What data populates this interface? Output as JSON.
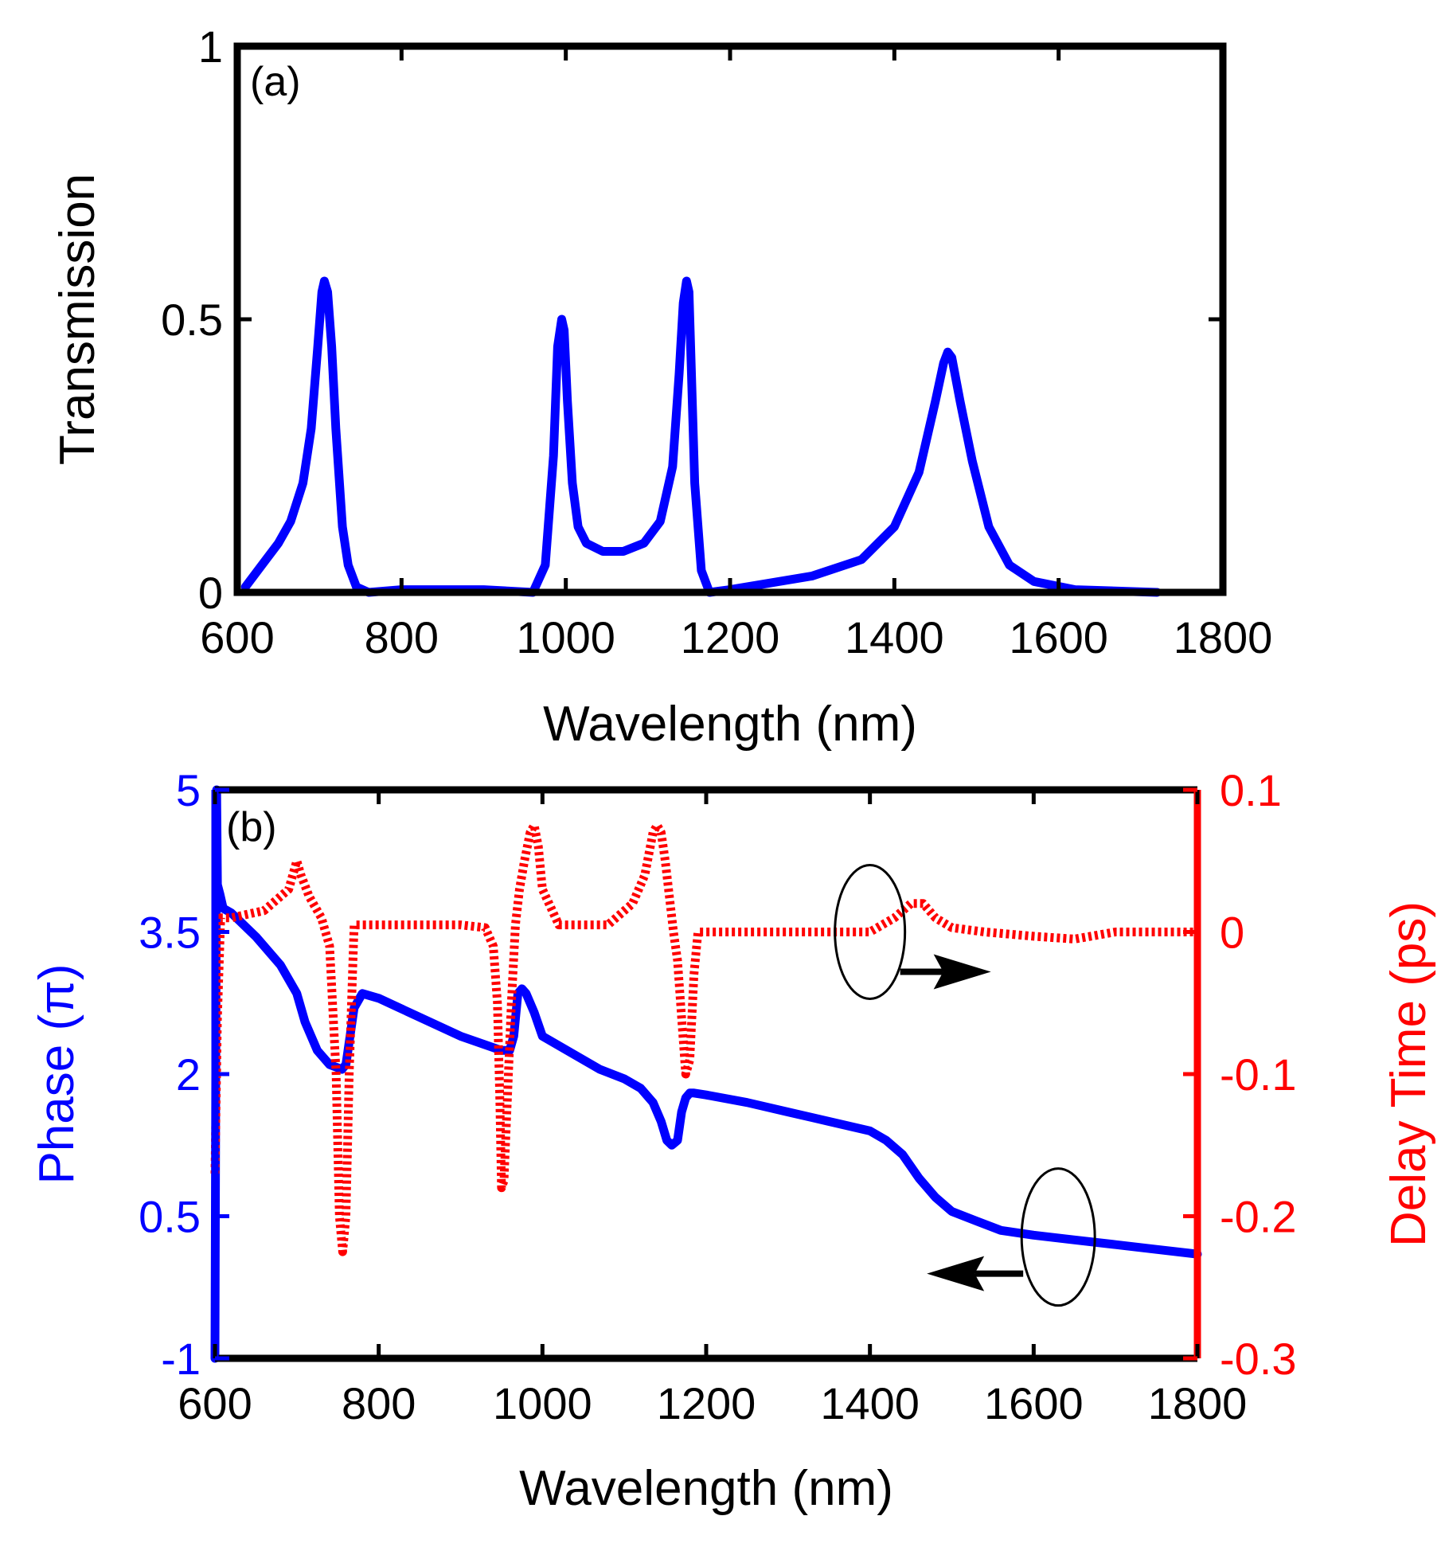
{
  "colors": {
    "blue": "#0000ff",
    "red": "#ff0000",
    "black": "#000000"
  },
  "chart_data": [
    {
      "panel_label": "(a)",
      "type": "line",
      "xlabel": "Wavelength (nm)",
      "ylabel": "Transmission",
      "xlim": [
        600,
        1800
      ],
      "ylim": [
        0,
        1
      ],
      "xticks": [
        "600",
        "800",
        "1000",
        "1200",
        "1400",
        "1600",
        "1800"
      ],
      "yticks": [
        "0",
        "0.5",
        "1"
      ],
      "series": [
        {
          "name": "Transmission",
          "color": "#0000ff",
          "x": [
            610,
            630,
            650,
            665,
            680,
            690,
            698,
            703,
            706,
            710,
            715,
            720,
            728,
            735,
            745,
            760,
            800,
            900,
            960,
            975,
            985,
            990,
            995,
            998,
            1002,
            1008,
            1015,
            1025,
            1045,
            1070,
            1095,
            1115,
            1130,
            1138,
            1143,
            1147,
            1150,
            1153,
            1157,
            1165,
            1175,
            1200,
            1300,
            1360,
            1400,
            1430,
            1450,
            1460,
            1465,
            1470,
            1480,
            1495,
            1515,
            1540,
            1570,
            1620,
            1720
          ],
          "y": [
            0.01,
            0.05,
            0.09,
            0.13,
            0.2,
            0.3,
            0.45,
            0.55,
            0.57,
            0.55,
            0.45,
            0.3,
            0.12,
            0.05,
            0.01,
            0.0,
            0.005,
            0.005,
            0.0,
            0.05,
            0.25,
            0.45,
            0.5,
            0.48,
            0.35,
            0.2,
            0.12,
            0.09,
            0.075,
            0.075,
            0.09,
            0.13,
            0.23,
            0.4,
            0.53,
            0.57,
            0.55,
            0.4,
            0.2,
            0.04,
            0.0,
            0.005,
            0.03,
            0.06,
            0.12,
            0.22,
            0.35,
            0.42,
            0.44,
            0.43,
            0.35,
            0.24,
            0.12,
            0.05,
            0.02,
            0.005,
            0.0
          ]
        }
      ]
    },
    {
      "panel_label": "(b)",
      "type": "line",
      "xlabel": "Wavelength (nm)",
      "ylabel": "Phase (π)",
      "ylabel_right": "Delay Time (ps)",
      "xlim": [
        600,
        1800
      ],
      "ylim": [
        -1,
        5
      ],
      "ylim_right": [
        -0.3,
        0.1
      ],
      "xticks": [
        "600",
        "800",
        "1000",
        "1200",
        "1400",
        "1600",
        "1800"
      ],
      "yticks": [
        "-1",
        "0.5",
        "2",
        "3.5",
        "5"
      ],
      "yticks_right": [
        "-0.3",
        "-0.2",
        "-0.1",
        "0",
        "0.1"
      ],
      "series": [
        {
          "name": "Phase",
          "axis": "left",
          "color": "#0000ff",
          "style": "solid",
          "x": [
            600,
            601,
            602,
            603,
            606,
            610,
            620,
            650,
            680,
            700,
            710,
            725,
            740,
            755,
            760,
            770,
            780,
            800,
            850,
            900,
            950,
            960,
            965,
            970,
            975,
            980,
            990,
            1000,
            1030,
            1070,
            1100,
            1120,
            1135,
            1145,
            1152,
            1158,
            1165,
            1170,
            1175,
            1180,
            1185,
            1200,
            1250,
            1300,
            1350,
            1400,
            1420,
            1440,
            1460,
            1480,
            1500,
            1530,
            1560,
            1600,
            1650,
            1700,
            1750,
            1800
          ],
          "y": [
            -1,
            2,
            5,
            4.0,
            3.9,
            3.75,
            3.7,
            3.45,
            3.15,
            2.85,
            2.55,
            2.25,
            2.1,
            2.05,
            2.1,
            2.7,
            2.85,
            2.8,
            2.6,
            2.4,
            2.25,
            2.25,
            2.4,
            2.85,
            2.9,
            2.85,
            2.65,
            2.4,
            2.25,
            2.05,
            1.95,
            1.85,
            1.7,
            1.5,
            1.3,
            1.25,
            1.3,
            1.6,
            1.75,
            1.8,
            1.8,
            1.78,
            1.7,
            1.6,
            1.5,
            1.4,
            1.3,
            1.15,
            0.9,
            0.7,
            0.55,
            0.45,
            0.35,
            0.3,
            0.25,
            0.2,
            0.15,
            0.1
          ]
        },
        {
          "name": "Delay Time",
          "axis": "right",
          "color": "#ff0000",
          "style": "dotted",
          "x": [
            600,
            603,
            607,
            612,
            620,
            660,
            690,
            700,
            705,
            715,
            730,
            740,
            748,
            752,
            756,
            760,
            764,
            770,
            790,
            850,
            900,
            930,
            940,
            945,
            948,
            950,
            953,
            957,
            962,
            967,
            972,
            978,
            985,
            990,
            995,
            1000,
            1020,
            1050,
            1080,
            1110,
            1125,
            1135,
            1140,
            1145,
            1150,
            1160,
            1165,
            1170,
            1175,
            1180,
            1185,
            1190,
            1200,
            1300,
            1400,
            1430,
            1450,
            1465,
            1480,
            1500,
            1540,
            1600,
            1650,
            1700,
            1750,
            1800
          ],
          "y": [
            -0.17,
            -0.06,
            0.01,
            0.01,
            0.01,
            0.015,
            0.03,
            0.05,
            0.04,
            0.025,
            0.01,
            -0.01,
            -0.1,
            -0.2,
            -0.225,
            -0.2,
            -0.1,
            0.005,
            0.005,
            0.005,
            0.005,
            0.003,
            -0.01,
            -0.05,
            -0.12,
            -0.18,
            -0.175,
            -0.12,
            -0.05,
            0.005,
            0.03,
            0.05,
            0.07,
            0.075,
            0.06,
            0.03,
            0.005,
            0.005,
            0.005,
            0.02,
            0.04,
            0.07,
            0.075,
            0.07,
            0.05,
            0.0,
            -0.02,
            -0.06,
            -0.1,
            -0.09,
            -0.03,
            0.0,
            0.0,
            0.0,
            0.0,
            0.01,
            0.02,
            0.02,
            0.01,
            0.003,
            0.0,
            -0.003,
            -0.005,
            0.0,
            0.0,
            0.0
          ]
        }
      ],
      "annotations": [
        {
          "type": "ellipse",
          "target_series": "Delay Time",
          "arrow_direction": "right"
        },
        {
          "type": "ellipse",
          "target_series": "Phase",
          "arrow_direction": "left"
        }
      ]
    }
  ]
}
